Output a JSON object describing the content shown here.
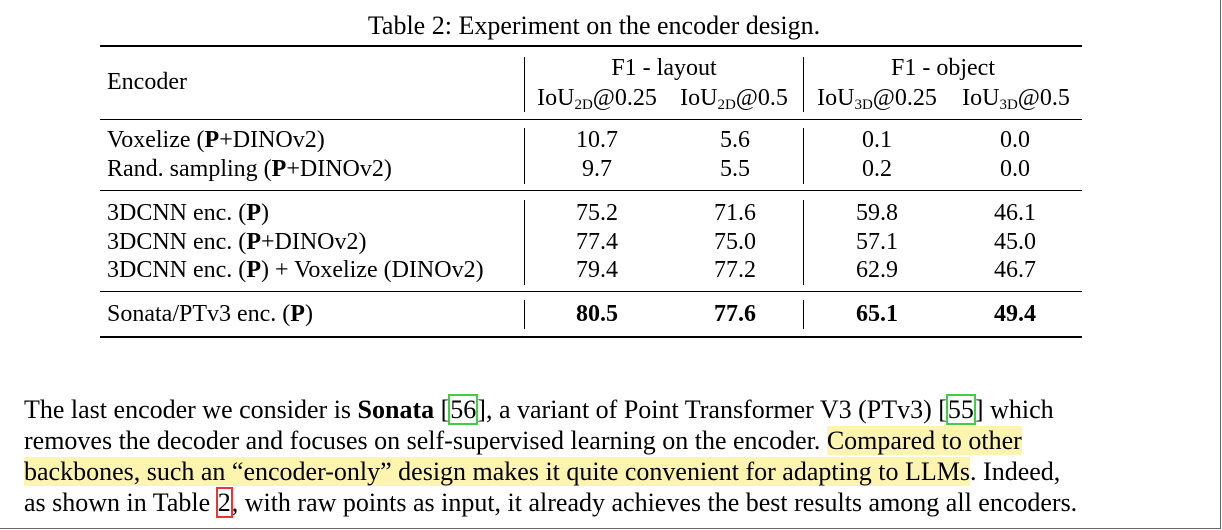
{
  "caption": "Table 2: Experiment on the encoder design.",
  "table": {
    "header": {
      "encoder": "Encoder",
      "group1": "F1 - layout",
      "group2": "F1 - object",
      "sub": [
        {
          "pre": "IoU",
          "sub": "2D",
          "post": "@0.25"
        },
        {
          "pre": "IoU",
          "sub": "2D",
          "post": "@0.5"
        },
        {
          "pre": "IoU",
          "sub": "3D",
          "post": "@0.25"
        },
        {
          "pre": "IoU",
          "sub": "3D",
          "post": "@0.5"
        }
      ]
    },
    "rows": [
      {
        "pre": "Voxelize (",
        "bold": "P",
        "post": "+DINOv2)",
        "values": [
          "10.7",
          "5.6",
          "0.1",
          "0.0"
        ]
      },
      {
        "pre": "Rand. sampling (",
        "bold": "P",
        "post": "+DINOv2)",
        "values": [
          "9.7",
          "5.5",
          "0.2",
          "0.0"
        ]
      },
      {
        "pre": "3DCNN enc. (",
        "bold": "P",
        "post": ")",
        "values": [
          "75.2",
          "71.6",
          "59.8",
          "46.1"
        ]
      },
      {
        "pre": "3DCNN enc. (",
        "bold": "P",
        "post": "+DINOv2)",
        "values": [
          "77.4",
          "75.0",
          "57.1",
          "45.0"
        ]
      },
      {
        "pre": "3DCNN enc. (",
        "bold": "P",
        "post": ") + Voxelize (DINOv2)",
        "values": [
          "79.4",
          "77.2",
          "62.9",
          "46.7"
        ]
      },
      {
        "pre": "Sonata/PTv3 enc. (",
        "bold": "P",
        "post": ")",
        "values": [
          "80.5",
          "77.6",
          "65.1",
          "49.4"
        ]
      }
    ]
  },
  "paragraph": {
    "l1_a": "The last encoder we consider is ",
    "l1_b": "Sonata",
    "l1_c": " [",
    "cite56": "56",
    "l1_d": "], a variant of Point Transformer V3 (PTv3) [",
    "cite55": "55",
    "l1_e": "] which",
    "l2_a": "removes the decoder and focuses on self-supervised learning on the encoder. ",
    "l2_hl": "Compared to other",
    "l3_hl": "backbones, such an “encoder-only” design makes it quite convenient for adapting to LLMs",
    "l3_b": ". Indeed,",
    "l4_a": "as shown in Table ",
    "cite2": "2",
    "l4_b": ", with raw points as input, it already achieves the best results among all encoders."
  }
}
